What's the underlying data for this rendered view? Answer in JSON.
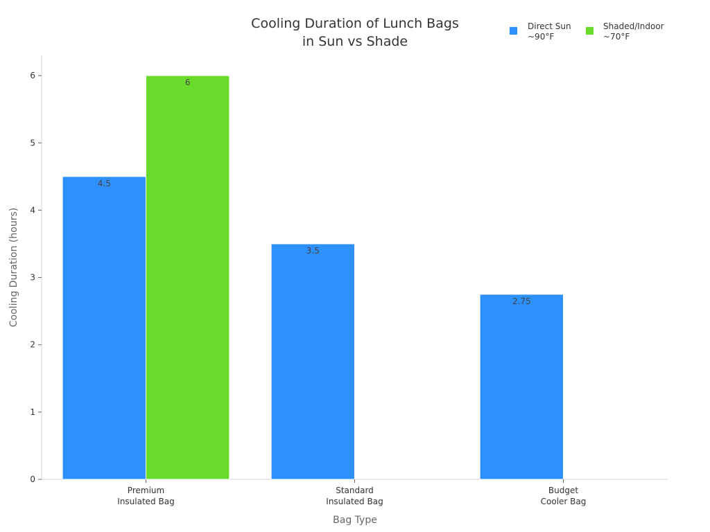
{
  "chart_data": {
    "type": "bar",
    "title": [
      "Cooling Duration of Lunch Bags",
      "in Sun vs Shade"
    ],
    "xlabel": "Bag Type",
    "ylabel": "Cooling Duration (hours)",
    "ylim": [
      0,
      6.3
    ],
    "yticks": [
      0,
      1,
      2,
      3,
      4,
      5,
      6
    ],
    "grid": false,
    "legend_position": "top-right",
    "categories": [
      [
        "Premium",
        "Insulated Bag"
      ],
      [
        "Standard",
        "Insulated Bag"
      ],
      [
        "Budget",
        "Cooler Bag"
      ]
    ],
    "series": [
      {
        "name": [
          "Direct Sun",
          "~90°F"
        ],
        "color": "#2e90fa",
        "values": [
          4.5,
          3.5,
          2.75
        ],
        "labels": [
          "4.5",
          "3.5",
          "2.75"
        ]
      },
      {
        "name": [
          "Shaded/Indoor",
          "~70°F"
        ],
        "color": "#69db2b",
        "values": [
          6,
          null,
          null
        ],
        "labels": [
          "6",
          "",
          ""
        ]
      }
    ]
  }
}
